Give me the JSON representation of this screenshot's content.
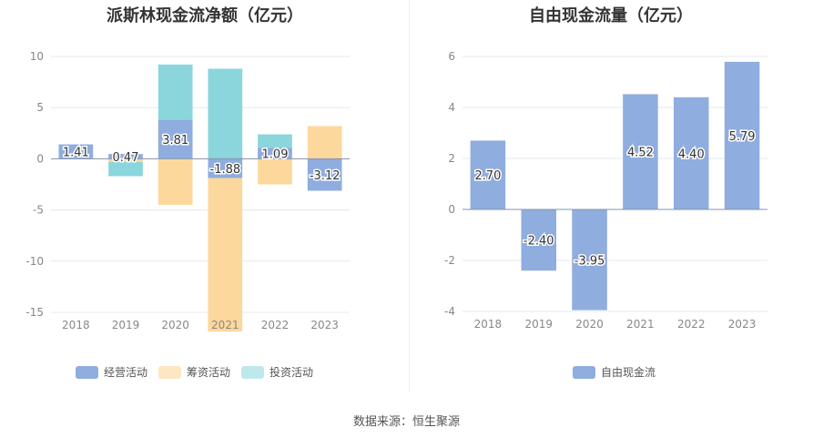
{
  "chart_data": [
    {
      "type": "bar",
      "title": "派斯林现金流净额（亿元）",
      "categories": [
        "2018",
        "2019",
        "2020",
        "2021",
        "2022",
        "2023"
      ],
      "stacked": true,
      "series": [
        {
          "name": "经营活动",
          "color": "#8fadde",
          "values": [
            1.41,
            0.47,
            3.81,
            -1.88,
            1.09,
            -3.12
          ]
        },
        {
          "name": "筹资活动",
          "color": "#fdd89c",
          "values": [
            0,
            -0.3,
            -4.5,
            -15.0,
            -2.5,
            3.2
          ]
        },
        {
          "name": "投资活动",
          "color": "#8ad6dc",
          "values": [
            0,
            -1.4,
            5.4,
            8.8,
            1.3,
            0
          ]
        }
      ],
      "data_labels": [
        "1.41",
        "0.47",
        "3.81",
        "-1.88",
        "1.09",
        "-3.12"
      ],
      "ylim": [
        -15,
        10
      ],
      "yticks": [
        10,
        5,
        0,
        -5,
        -10,
        -15
      ],
      "legend": "bottom"
    },
    {
      "type": "bar",
      "title": "自由现金流量（亿元）",
      "categories": [
        "2018",
        "2019",
        "2020",
        "2021",
        "2022",
        "2023"
      ],
      "series": [
        {
          "name": "自由现金流",
          "color": "#8fadde",
          "values": [
            2.7,
            -2.4,
            -3.95,
            4.52,
            4.4,
            5.79
          ]
        }
      ],
      "data_labels": [
        "2.70",
        "-2.40",
        "-3.95",
        "4.52",
        "4.40",
        "5.79"
      ],
      "ylim": [
        -4,
        6
      ],
      "yticks": [
        6,
        4,
        2,
        0,
        -2,
        -4
      ],
      "legend": "bottom"
    }
  ],
  "source": "数据来源：恒生聚源"
}
